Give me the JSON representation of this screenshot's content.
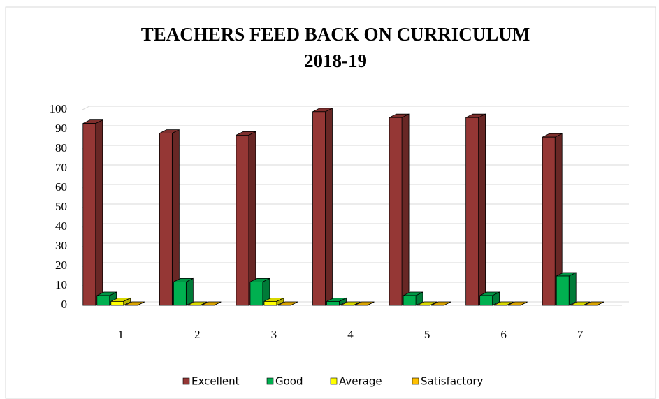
{
  "chart_data": {
    "type": "bar3d",
    "title": "TEACHERS FEED BACK ON CURRICULUM",
    "subtitle": "2018-19",
    "categories": [
      "1",
      "2",
      "3",
      "4",
      "5",
      "6",
      "7"
    ],
    "series": [
      {
        "name": "Excellent",
        "color": "#953735",
        "values": [
          93,
          88,
          87,
          99,
          96,
          96,
          86
        ]
      },
      {
        "name": "Good",
        "color": "#00b050",
        "values": [
          5,
          12,
          12,
          2,
          5,
          5,
          15
        ]
      },
      {
        "name": "Average",
        "color": "#ffff00",
        "values": [
          2,
          0,
          2,
          0,
          0,
          0,
          0
        ]
      },
      {
        "name": "Satisfactory",
        "color": "#ffc000",
        "values": [
          0,
          0,
          0,
          0,
          0,
          0,
          0
        ]
      }
    ],
    "ylim": [
      0,
      100
    ],
    "yticks": [
      0,
      10,
      20,
      30,
      40,
      50,
      60,
      70,
      80,
      90,
      100
    ],
    "grid": true,
    "legend": "bottom"
  }
}
